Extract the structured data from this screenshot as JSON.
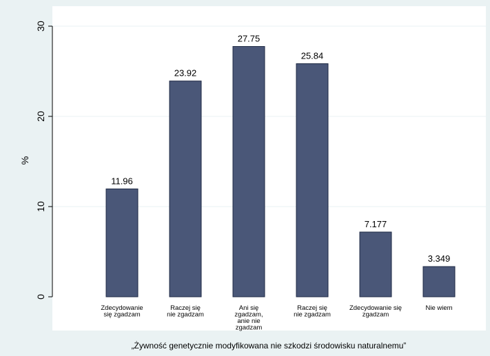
{
  "colors": {
    "outer_background": "#eaf2f3",
    "plot_background": "#ffffff",
    "bar_fill": "#4a5778",
    "bar_stroke": "#1f2a44",
    "grid": "#eaf2f3",
    "axis": "#000000"
  },
  "chart_data": {
    "type": "bar",
    "title": "",
    "xlabel": "„Żywność genetycznie modyfikowana nie szkodzi środowisku naturalnemu”",
    "ylabel": "%",
    "ylim": [
      0,
      30
    ],
    "yticks": [
      0,
      10,
      20,
      30
    ],
    "grid": true,
    "legend": "none",
    "categories": [
      [
        "Zdecydowanie",
        "się zgadzam"
      ],
      [
        "Raczej się",
        "nie zgadzam"
      ],
      [
        "Ani się",
        "zgadzam,",
        "anie nie",
        "zgadzam"
      ],
      [
        "Raczej się",
        "nie zgadzam"
      ],
      [
        "Zdecydowanie się",
        "zgadzam"
      ],
      [
        "Nie wiem"
      ]
    ],
    "values": [
      11.96,
      23.92,
      27.75,
      25.84,
      7.177,
      3.349
    ],
    "value_labels": [
      "11.96",
      "23.92",
      "27.75",
      "25.84",
      "7.177",
      "3.349"
    ]
  }
}
